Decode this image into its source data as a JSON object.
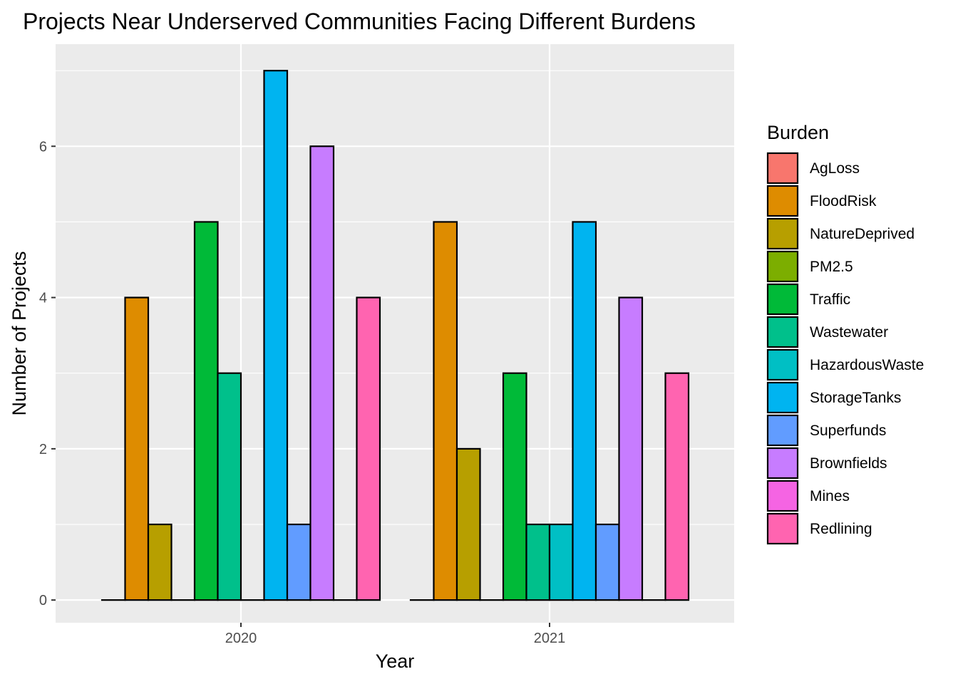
{
  "chart_data": {
    "type": "bar",
    "title": "Projects Near Underserved Communities Facing Different Burdens",
    "xlabel": "Year",
    "ylabel": "Number of Projects",
    "categories": [
      "2020",
      "2021"
    ],
    "ylim": [
      -0.3,
      7.35
    ],
    "yticks": [
      0,
      2,
      4,
      6
    ],
    "grid": true,
    "legend_position": "right",
    "legend_title": "Burden",
    "series": [
      {
        "name": "AgLoss",
        "color": "#F8766D",
        "values": [
          0,
          0
        ]
      },
      {
        "name": "FloodRisk",
        "color": "#DE8C00",
        "values": [
          4,
          5
        ]
      },
      {
        "name": "NatureDeprived",
        "color": "#B79F00",
        "values": [
          1,
          2
        ]
      },
      {
        "name": "PM2.5",
        "color": "#7CAE00",
        "values": [
          0,
          0
        ]
      },
      {
        "name": "Traffic",
        "color": "#00BA38",
        "values": [
          5,
          3
        ]
      },
      {
        "name": "Wastewater",
        "color": "#00C08B",
        "values": [
          3,
          1
        ]
      },
      {
        "name": "HazardousWaste",
        "color": "#00BFC4",
        "values": [
          0,
          1
        ]
      },
      {
        "name": "StorageTanks",
        "color": "#00B4F0",
        "values": [
          7,
          5
        ]
      },
      {
        "name": "Superfunds",
        "color": "#619CFF",
        "values": [
          1,
          1
        ]
      },
      {
        "name": "Brownfields",
        "color": "#C77CFF",
        "values": [
          6,
          4
        ]
      },
      {
        "name": "Mines",
        "color": "#F564E3",
        "values": [
          0,
          0
        ]
      },
      {
        "name": "Redlining",
        "color": "#FF64B0",
        "values": [
          4,
          3
        ]
      }
    ]
  }
}
